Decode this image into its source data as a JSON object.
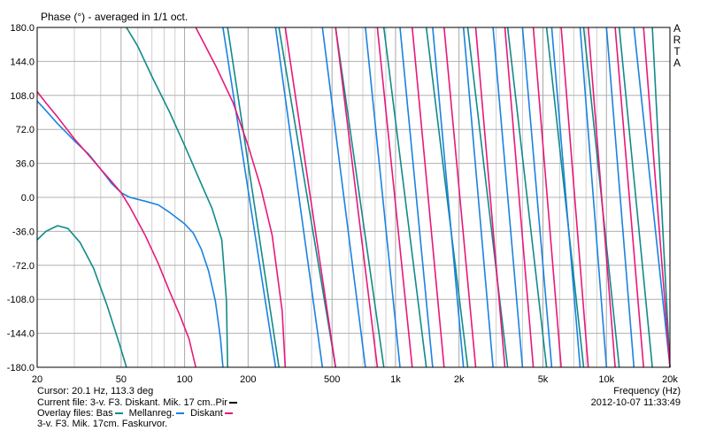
{
  "chart_data": {
    "type": "line",
    "title": "Phase (°) - averaged in 1/1 oct.",
    "xlabel": "Frequency (Hz)",
    "ylabel": "",
    "x_scale": "log",
    "xlim": [
      20,
      20000
    ],
    "ylim": [
      -180,
      180
    ],
    "x_ticks": [
      {
        "value": 20,
        "label": "20"
      },
      {
        "value": 50,
        "label": "50"
      },
      {
        "value": 100,
        "label": "100"
      },
      {
        "value": 200,
        "label": "200"
      },
      {
        "value": 500,
        "label": "500"
      },
      {
        "value": 1000,
        "label": "1k"
      },
      {
        "value": 2000,
        "label": "2k"
      },
      {
        "value": 5000,
        "label": "5k"
      },
      {
        "value": 10000,
        "label": "10k"
      },
      {
        "value": 20000,
        "label": "20k"
      }
    ],
    "y_ticks": [
      "180.0",
      "144.0",
      "108.0",
      "72.0",
      "36.0",
      "0.0",
      "-36.0",
      "-72.0",
      "-108.0",
      "-144.0",
      "-180.0"
    ],
    "y_tick_values": [
      180,
      144,
      108,
      72,
      36,
      0,
      -36,
      -72,
      -108,
      -144,
      -180
    ],
    "grid": true,
    "series": [
      {
        "name": "Bas",
        "color": "#128a8a",
        "phase_shape": [
          [
            20,
            -45
          ],
          [
            22,
            -36
          ],
          [
            25,
            -30
          ],
          [
            28,
            -33
          ],
          [
            32,
            -48
          ],
          [
            37,
            -75
          ],
          [
            43,
            -115
          ],
          [
            49,
            -155
          ],
          [
            53,
            -180
          ],
          [
            53,
            180
          ],
          [
            60,
            160
          ],
          [
            70,
            128
          ],
          [
            85,
            90
          ],
          [
            100,
            55
          ],
          [
            118,
            18
          ],
          [
            135,
            -12
          ],
          [
            150,
            -45
          ],
          [
            158,
            -110
          ],
          [
            160,
            -180
          ],
          [
            160,
            180
          ]
        ],
        "phase_wraps": [
          [
            160,
            280
          ],
          [
            280,
            520
          ],
          [
            520,
            880
          ],
          [
            880,
            1400
          ],
          [
            1400,
            2200
          ],
          [
            2200,
            3400
          ],
          [
            3400,
            5200
          ],
          [
            5200,
            7800
          ],
          [
            7800,
            11500
          ],
          [
            11500,
            16500
          ],
          [
            16500,
            20000
          ]
        ]
      },
      {
        "name": "Mellanreg.",
        "color": "#1a82e0",
        "phase_shape": [
          [
            20,
            102
          ],
          [
            22,
            92
          ],
          [
            25,
            78
          ],
          [
            30,
            60
          ],
          [
            35,
            46
          ],
          [
            40,
            30
          ],
          [
            45,
            15
          ],
          [
            50,
            5
          ],
          [
            55,
            0
          ],
          [
            65,
            -4
          ],
          [
            75,
            -8
          ],
          [
            85,
            -16
          ],
          [
            100,
            -28
          ],
          [
            110,
            -38
          ],
          [
            120,
            -55
          ],
          [
            130,
            -78
          ],
          [
            140,
            -110
          ],
          [
            148,
            -150
          ],
          [
            152,
            -180
          ],
          [
            152,
            180
          ]
        ],
        "phase_wraps": [
          [
            152,
            270
          ],
          [
            270,
            450
          ],
          [
            450,
            720
          ],
          [
            720,
            1050
          ],
          [
            1050,
            1500
          ],
          [
            1500,
            2100
          ],
          [
            2100,
            2900
          ],
          [
            2900,
            4000
          ],
          [
            4000,
            5500
          ],
          [
            5500,
            7500
          ],
          [
            7500,
            10000
          ],
          [
            10000,
            13500
          ],
          [
            13500,
            20000
          ]
        ]
      },
      {
        "name": "Diskant",
        "color": "#e8187a",
        "phase_shape": [
          [
            20,
            112
          ],
          [
            22,
            100
          ],
          [
            25,
            85
          ],
          [
            30,
            62
          ],
          [
            35,
            45
          ],
          [
            40,
            30
          ],
          [
            45,
            17
          ],
          [
            50,
            5
          ],
          [
            55,
            -10
          ],
          [
            65,
            -40
          ],
          [
            75,
            -70
          ],
          [
            85,
            -100
          ],
          [
            95,
            -125
          ],
          [
            105,
            -150
          ],
          [
            113,
            -180
          ],
          [
            113,
            180
          ],
          [
            140,
            140
          ],
          [
            170,
            100
          ],
          [
            200,
            55
          ],
          [
            230,
            10
          ],
          [
            260,
            -40
          ],
          [
            290,
            -120
          ],
          [
            300,
            -180
          ],
          [
            300,
            180
          ]
        ],
        "phase_wraps": [
          [
            300,
            520
          ],
          [
            520,
            820
          ],
          [
            820,
            1200
          ],
          [
            1200,
            1700
          ],
          [
            1700,
            2400
          ],
          [
            2400,
            3300
          ],
          [
            3300,
            4500
          ],
          [
            4500,
            6100
          ],
          [
            6100,
            8200
          ],
          [
            8200,
            11000
          ],
          [
            11000,
            15000
          ],
          [
            15000,
            20000
          ]
        ]
      }
    ]
  },
  "brand": {
    "letters": [
      "A",
      "R",
      "T",
      "A"
    ]
  },
  "footer": {
    "cursor": "Cursor: 20.1 Hz, 113.3 deg",
    "current_file": "Current file: 3-v. F3. Diskant. Mik. 17 cm..Pir",
    "overlay_label": "Overlay files:",
    "overlay_note": "3-v. F3. Mik. 17cm. Faskurvor.",
    "xlabel": "Frequency (Hz)",
    "timestamp": "2012-10-07  11:33:49",
    "current_color": "#000000"
  }
}
